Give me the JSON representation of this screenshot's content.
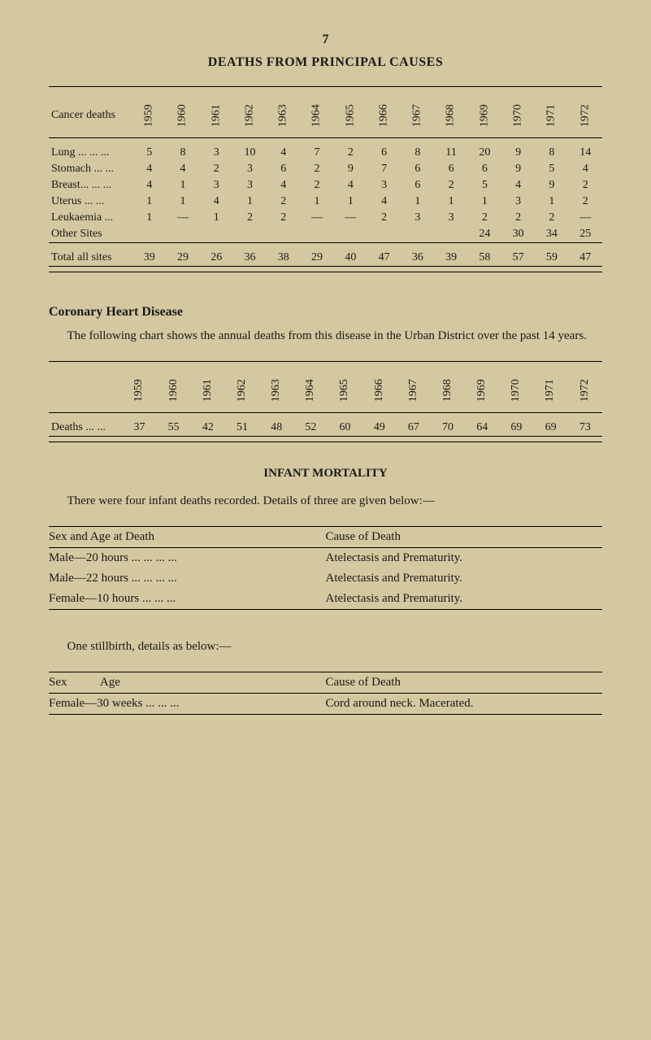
{
  "page_number": "7",
  "main_title": "DEATHS FROM PRINCIPAL CAUSES",
  "cancer_table": {
    "row_header": "Cancer deaths",
    "years": [
      "1959",
      "1960",
      "1961",
      "1962",
      "1963",
      "1964",
      "1965",
      "1966",
      "1967",
      "1968",
      "1969",
      "1970",
      "1971",
      "1972"
    ],
    "rows": [
      {
        "label": "Lung ... ... ...",
        "vals": [
          "5",
          "8",
          "3",
          "10",
          "4",
          "7",
          "2",
          "6",
          "8",
          "11",
          "20",
          "9",
          "8",
          "14"
        ]
      },
      {
        "label": "Stomach ... ...",
        "vals": [
          "4",
          "4",
          "2",
          "3",
          "6",
          "2",
          "9",
          "7",
          "6",
          "6",
          "6",
          "9",
          "5",
          "4"
        ]
      },
      {
        "label": "Breast... ... ...",
        "vals": [
          "4",
          "1",
          "3",
          "3",
          "4",
          "2",
          "4",
          "3",
          "6",
          "2",
          "5",
          "4",
          "9",
          "2"
        ]
      },
      {
        "label": "Uterus   ... ...",
        "vals": [
          "1",
          "1",
          "4",
          "1",
          "2",
          "1",
          "1",
          "4",
          "1",
          "1",
          "1",
          "3",
          "1",
          "2"
        ]
      },
      {
        "label": "Leukaemia  ...",
        "vals": [
          "1",
          "—",
          "1",
          "2",
          "2",
          "—",
          "—",
          "2",
          "3",
          "3",
          "2",
          "2",
          "2",
          "—"
        ]
      },
      {
        "label": "Other Sites",
        "vals": [
          "",
          "",
          "",
          "",
          "",
          "",
          "",
          "",
          "",
          "",
          "24",
          "30",
          "34",
          "25"
        ]
      }
    ],
    "total": {
      "label": "Total  all  sites",
      "vals": [
        "39",
        "29",
        "26",
        "36",
        "38",
        "29",
        "40",
        "47",
        "36",
        "39",
        "58",
        "57",
        "59",
        "47"
      ]
    }
  },
  "coronary": {
    "heading": "Coronary Heart Disease",
    "paragraph": "The following chart shows the annual deaths from this disease in the Urban District over the past 14 years.",
    "years": [
      "1959",
      "1960",
      "1961",
      "1962",
      "1963",
      "1964",
      "1965",
      "1966",
      "1967",
      "1968",
      "1969",
      "1970",
      "1971",
      "1972"
    ],
    "row": {
      "label": "Deaths ... ...",
      "vals": [
        "37",
        "55",
        "42",
        "51",
        "48",
        "52",
        "60",
        "49",
        "67",
        "70",
        "64",
        "69",
        "69",
        "73"
      ]
    }
  },
  "infant": {
    "heading": "INFANT MORTALITY",
    "intro": "There were four infant deaths recorded.   Details of three are given below:—",
    "header_left": "Sex and Age at Death",
    "header_right": "Cause of Death",
    "rows": [
      {
        "l": "Male—20 hours ... ... ... ...",
        "r": "Atelectasis and Prematurity."
      },
      {
        "l": "Male—22 hours ... ... ... ...",
        "r": "Atelectasis and Prematurity."
      },
      {
        "l": "Female—10  hours  ... ... ...",
        "r": "Atelectasis and Prematurity."
      }
    ],
    "stillbirth_line": "One stillbirth, details as below:—",
    "sb_header_left": "Sex           Age",
    "sb_header_right": "Cause of Death",
    "sb_row": {
      "l": "Female—30  weeks ... ... ...",
      "r": "Cord around neck.  Macerated."
    }
  }
}
